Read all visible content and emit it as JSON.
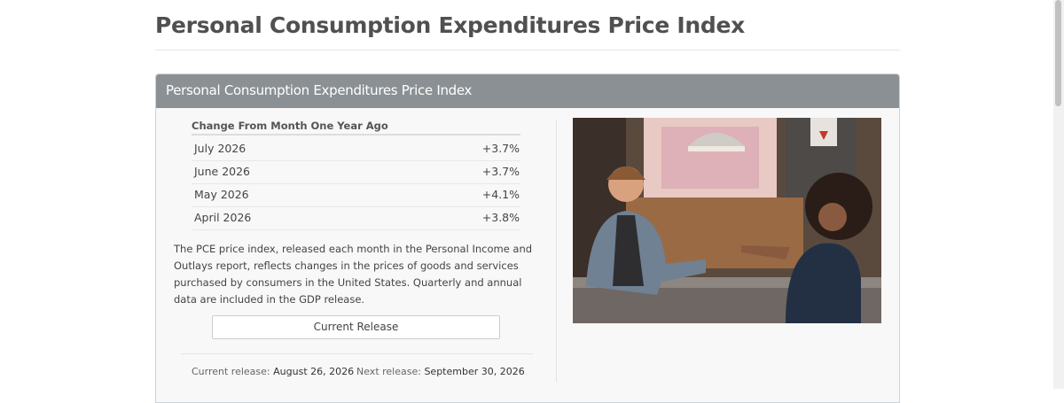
{
  "header": {
    "title": "Personal Consumption Expenditures Price Index"
  },
  "panel": {
    "title": "Personal Consumption Expenditures Price Index",
    "table": {
      "caption": "Change From Month One Year Ago",
      "rows": [
        [
          "July 2026",
          "+3.7%"
        ],
        [
          "June 2026",
          "+3.7%"
        ],
        [
          "May 2026",
          "+4.1%"
        ],
        [
          "April 2026",
          "+3.8%"
        ]
      ]
    },
    "description": "The PCE price index, released each month in the Personal Income and Outlays report, reflects changes in the prices of goods and services purchased by consumers in the United States. Quarterly and annual data are included in the GDP release.",
    "button": "Current Release",
    "footer": {
      "current_label": "Current release:",
      "current_date": "August 26, 2026",
      "next_label": "Next release:",
      "next_date": "September 30, 2026"
    }
  }
}
